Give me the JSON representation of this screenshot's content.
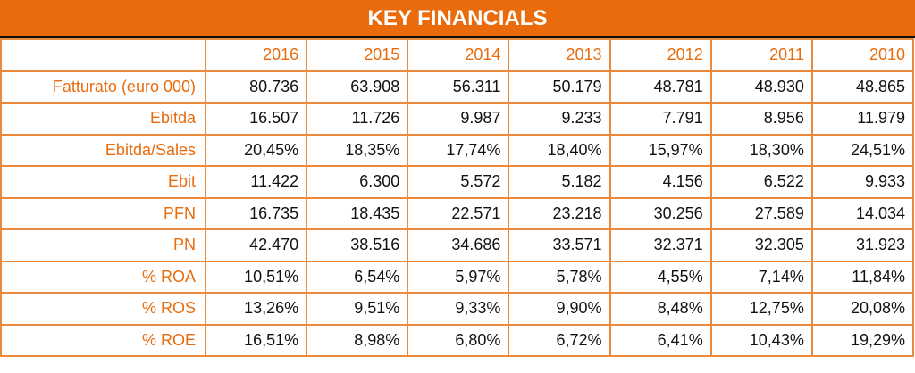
{
  "title": "KEY FINANCIALS",
  "years": [
    "2016",
    "2015",
    "2014",
    "2013",
    "2012",
    "2011",
    "2010"
  ],
  "rows": [
    {
      "label": "Fatturato (euro 000)",
      "values": [
        "80.736",
        "63.908",
        "56.311",
        "50.179",
        "48.781",
        "48.930",
        "48.865"
      ]
    },
    {
      "label": "Ebitda",
      "values": [
        "16.507",
        "11.726",
        "9.987",
        "9.233",
        "7.791",
        "8.956",
        "11.979"
      ]
    },
    {
      "label": "Ebitda/Sales",
      "values": [
        "20,45%",
        "18,35%",
        "17,74%",
        "18,40%",
        "15,97%",
        "18,30%",
        "24,51%"
      ]
    },
    {
      "label": "Ebit",
      "values": [
        "11.422",
        "6.300",
        "5.572",
        "5.182",
        "4.156",
        "6.522",
        "9.933"
      ]
    },
    {
      "label": "PFN",
      "values": [
        "16.735",
        "18.435",
        "22.571",
        "23.218",
        "30.256",
        "27.589",
        "14.034"
      ]
    },
    {
      "label": "PN",
      "values": [
        "42.470",
        "38.516",
        "34.686",
        "33.571",
        "32.371",
        "32.305",
        "31.923"
      ]
    },
    {
      "label": "% ROA",
      "values": [
        "10,51%",
        "6,54%",
        "5,97%",
        "5,78%",
        "4,55%",
        "7,14%",
        "11,84%"
      ]
    },
    {
      "label": "% ROS",
      "values": [
        "13,26%",
        "9,51%",
        "9,33%",
        "9,90%",
        "8,48%",
        "12,75%",
        "20,08%"
      ]
    },
    {
      "label": "% ROE",
      "values": [
        "16,51%",
        "8,98%",
        "6,80%",
        "6,72%",
        "6,41%",
        "10,43%",
        "19,29%"
      ]
    }
  ],
  "colors": {
    "accent": "#E96B0C",
    "grid": "#E98A3C"
  }
}
